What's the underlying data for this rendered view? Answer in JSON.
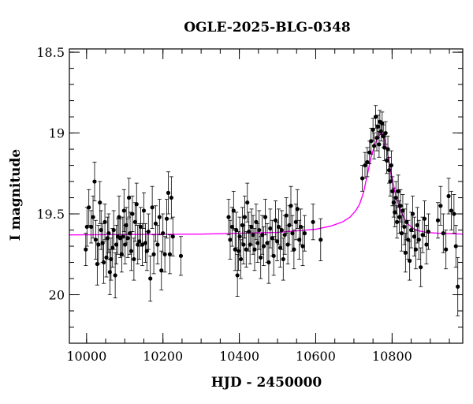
{
  "chart_data": {
    "type": "scatter",
    "title": "OGLE-2025-BLG-0348",
    "xlabel": "HJD - 2450000",
    "ylabel": "I magnitude",
    "xlim": [
      9955,
      10985
    ],
    "ylim": [
      20.3,
      18.48
    ],
    "y_inverted": true,
    "xticks": [
      10000,
      10200,
      10400,
      10600,
      10800
    ],
    "yticks": [
      {
        "value": 18.5,
        "label": "18.5"
      },
      {
        "value": 19.0,
        "label": "19"
      },
      {
        "value": 19.5,
        "label": "19.5"
      },
      {
        "value": 20.0,
        "label": "20"
      }
    ],
    "x_minor_step": 50,
    "y_minor_step": 0.1,
    "grid": false,
    "series": [
      {
        "kind": "points_with_error_bars",
        "color": "#000000",
        "points": [
          {
            "x": 9998,
            "y": 19.72,
            "err": 0.1
          },
          {
            "x": 10001,
            "y": 19.58,
            "err": 0.12
          },
          {
            "x": 10006,
            "y": 19.46,
            "err": 0.11
          },
          {
            "x": 10012,
            "y": 19.58,
            "err": 0.1
          },
          {
            "x": 10017,
            "y": 19.52,
            "err": 0.13
          },
          {
            "x": 10021,
            "y": 19.3,
            "err": 0.12
          },
          {
            "x": 10024,
            "y": 19.66,
            "err": 0.12
          },
          {
            "x": 10028,
            "y": 19.81,
            "err": 0.13
          },
          {
            "x": 10031,
            "y": 19.69,
            "err": 0.12
          },
          {
            "x": 10035,
            "y": 19.43,
            "err": 0.13
          },
          {
            "x": 10038,
            "y": 19.6,
            "err": 0.12
          },
          {
            "x": 10042,
            "y": 19.68,
            "err": 0.12
          },
          {
            "x": 10045,
            "y": 19.8,
            "err": 0.13
          },
          {
            "x": 10048,
            "y": 19.55,
            "err": 0.11
          },
          {
            "x": 10052,
            "y": 19.77,
            "err": 0.12
          },
          {
            "x": 10055,
            "y": 19.65,
            "err": 0.13
          },
          {
            "x": 10058,
            "y": 19.62,
            "err": 0.12
          },
          {
            "x": 10061,
            "y": 19.86,
            "err": 0.14
          },
          {
            "x": 10064,
            "y": 19.78,
            "err": 0.13
          },
          {
            "x": 10068,
            "y": 19.71,
            "err": 0.12
          },
          {
            "x": 10071,
            "y": 19.6,
            "err": 0.12
          },
          {
            "x": 10075,
            "y": 19.88,
            "err": 0.14
          },
          {
            "x": 10078,
            "y": 19.69,
            "err": 0.12
          },
          {
            "x": 10082,
            "y": 19.64,
            "err": 0.11
          },
          {
            "x": 10085,
            "y": 19.52,
            "err": 0.13
          },
          {
            "x": 10088,
            "y": 19.65,
            "err": 0.12
          },
          {
            "x": 10092,
            "y": 19.75,
            "err": 0.11
          },
          {
            "x": 10095,
            "y": 19.64,
            "err": 0.12
          },
          {
            "x": 10098,
            "y": 19.48,
            "err": 0.13
          },
          {
            "x": 10101,
            "y": 19.69,
            "err": 0.12
          },
          {
            "x": 10104,
            "y": 19.57,
            "err": 0.11
          },
          {
            "x": 10108,
            "y": 19.65,
            "err": 0.12
          },
          {
            "x": 10111,
            "y": 19.4,
            "err": 0.12
          },
          {
            "x": 10114,
            "y": 19.62,
            "err": 0.13
          },
          {
            "x": 10117,
            "y": 19.73,
            "err": 0.12
          },
          {
            "x": 10120,
            "y": 19.5,
            "err": 0.11
          },
          {
            "x": 10124,
            "y": 19.78,
            "err": 0.13
          },
          {
            "x": 10127,
            "y": 19.55,
            "err": 0.12
          },
          {
            "x": 10131,
            "y": 19.44,
            "err": 0.13
          },
          {
            "x": 10134,
            "y": 19.69,
            "err": 0.12
          },
          {
            "x": 10138,
            "y": 19.67,
            "err": 0.11
          },
          {
            "x": 10142,
            "y": 19.58,
            "err": 0.12
          },
          {
            "x": 10146,
            "y": 19.69,
            "err": 0.13
          },
          {
            "x": 10150,
            "y": 19.48,
            "err": 0.11
          },
          {
            "x": 10154,
            "y": 19.68,
            "err": 0.12
          },
          {
            "x": 10158,
            "y": 19.73,
            "err": 0.12
          },
          {
            "x": 10162,
            "y": 19.61,
            "err": 0.11
          },
          {
            "x": 10167,
            "y": 19.9,
            "err": 0.14
          },
          {
            "x": 10172,
            "y": 19.46,
            "err": 0.13
          },
          {
            "x": 10176,
            "y": 19.75,
            "err": 0.12
          },
          {
            "x": 10181,
            "y": 19.56,
            "err": 0.11
          },
          {
            "x": 10186,
            "y": 19.69,
            "err": 0.12
          },
          {
            "x": 10191,
            "y": 19.52,
            "err": 0.11
          },
          {
            "x": 10196,
            "y": 19.85,
            "err": 0.12
          },
          {
            "x": 10200,
            "y": 19.62,
            "err": 0.12
          },
          {
            "x": 10205,
            "y": 19.75,
            "err": 0.11
          },
          {
            "x": 10210,
            "y": 19.53,
            "err": 0.12
          },
          {
            "x": 10214,
            "y": 19.37,
            "err": 0.13
          },
          {
            "x": 10218,
            "y": 19.75,
            "err": 0.12
          },
          {
            "x": 10222,
            "y": 19.4,
            "err": 0.13
          },
          {
            "x": 10226,
            "y": 19.64,
            "err": 0.12
          },
          {
            "x": 10247,
            "y": 19.76,
            "err": 0.12
          },
          {
            "x": 10372,
            "y": 19.52,
            "err": 0.11
          },
          {
            "x": 10376,
            "y": 19.66,
            "err": 0.12
          },
          {
            "x": 10381,
            "y": 19.58,
            "err": 0.12
          },
          {
            "x": 10385,
            "y": 19.48,
            "err": 0.12
          },
          {
            "x": 10389,
            "y": 19.72,
            "err": 0.13
          },
          {
            "x": 10392,
            "y": 19.6,
            "err": 0.11
          },
          {
            "x": 10395,
            "y": 19.88,
            "err": 0.13
          },
          {
            "x": 10398,
            "y": 19.73,
            "err": 0.12
          },
          {
            "x": 10401,
            "y": 19.64,
            "err": 0.12
          },
          {
            "x": 10404,
            "y": 19.78,
            "err": 0.12
          },
          {
            "x": 10408,
            "y": 19.57,
            "err": 0.11
          },
          {
            "x": 10411,
            "y": 19.69,
            "err": 0.12
          },
          {
            "x": 10414,
            "y": 19.52,
            "err": 0.13
          },
          {
            "x": 10418,
            "y": 19.72,
            "err": 0.11
          },
          {
            "x": 10421,
            "y": 19.43,
            "err": 0.12
          },
          {
            "x": 10425,
            "y": 19.61,
            "err": 0.12
          },
          {
            "x": 10428,
            "y": 19.69,
            "err": 0.12
          },
          {
            "x": 10432,
            "y": 19.58,
            "err": 0.11
          },
          {
            "x": 10436,
            "y": 19.63,
            "err": 0.12
          },
          {
            "x": 10440,
            "y": 19.72,
            "err": 0.13
          },
          {
            "x": 10444,
            "y": 19.55,
            "err": 0.11
          },
          {
            "x": 10448,
            "y": 19.68,
            "err": 0.12
          },
          {
            "x": 10452,
            "y": 19.6,
            "err": 0.12
          },
          {
            "x": 10456,
            "y": 19.77,
            "err": 0.13
          },
          {
            "x": 10460,
            "y": 19.63,
            "err": 0.12
          },
          {
            "x": 10464,
            "y": 19.7,
            "err": 0.12
          },
          {
            "x": 10468,
            "y": 19.52,
            "err": 0.11
          },
          {
            "x": 10473,
            "y": 19.68,
            "err": 0.12
          },
          {
            "x": 10477,
            "y": 19.8,
            "err": 0.13
          },
          {
            "x": 10481,
            "y": 19.59,
            "err": 0.12
          },
          {
            "x": 10486,
            "y": 19.65,
            "err": 0.11
          },
          {
            "x": 10490,
            "y": 19.76,
            "err": 0.12
          },
          {
            "x": 10495,
            "y": 19.54,
            "err": 0.12
          },
          {
            "x": 10499,
            "y": 19.67,
            "err": 0.12
          },
          {
            "x": 10503,
            "y": 19.58,
            "err": 0.11
          },
          {
            "x": 10507,
            "y": 19.71,
            "err": 0.12
          },
          {
            "x": 10511,
            "y": 19.6,
            "err": 0.12
          },
          {
            "x": 10515,
            "y": 19.78,
            "err": 0.13
          },
          {
            "x": 10519,
            "y": 19.63,
            "err": 0.12
          },
          {
            "x": 10523,
            "y": 19.51,
            "err": 0.11
          },
          {
            "x": 10527,
            "y": 19.69,
            "err": 0.12
          },
          {
            "x": 10531,
            "y": 19.57,
            "err": 0.12
          },
          {
            "x": 10535,
            "y": 19.45,
            "err": 0.12
          },
          {
            "x": 10539,
            "y": 19.62,
            "err": 0.11
          },
          {
            "x": 10543,
            "y": 19.72,
            "err": 0.12
          },
          {
            "x": 10548,
            "y": 19.55,
            "err": 0.11
          },
          {
            "x": 10552,
            "y": 19.47,
            "err": 0.12
          },
          {
            "x": 10557,
            "y": 19.66,
            "err": 0.12
          },
          {
            "x": 10561,
            "y": 19.58,
            "err": 0.11
          },
          {
            "x": 10566,
            "y": 19.7,
            "err": 0.12
          },
          {
            "x": 10571,
            "y": 19.62,
            "err": 0.11
          },
          {
            "x": 10593,
            "y": 19.55,
            "err": 0.11
          },
          {
            "x": 10613,
            "y": 19.66,
            "err": 0.13
          },
          {
            "x": 10722,
            "y": 19.28,
            "err": 0.08
          },
          {
            "x": 10729,
            "y": 19.2,
            "err": 0.08
          },
          {
            "x": 10735,
            "y": 19.18,
            "err": 0.09
          },
          {
            "x": 10741,
            "y": 19.12,
            "err": 0.07
          },
          {
            "x": 10745,
            "y": 19.05,
            "err": 0.08
          },
          {
            "x": 10750,
            "y": 18.98,
            "err": 0.07
          },
          {
            "x": 10753,
            "y": 19.08,
            "err": 0.08
          },
          {
            "x": 10757,
            "y": 18.9,
            "err": 0.07
          },
          {
            "x": 10760,
            "y": 19.03,
            "err": 0.08
          },
          {
            "x": 10763,
            "y": 18.96,
            "err": 0.07
          },
          {
            "x": 10766,
            "y": 19.07,
            "err": 0.08
          },
          {
            "x": 10768,
            "y": 18.93,
            "err": 0.07
          },
          {
            "x": 10771,
            "y": 18.99,
            "err": 0.06
          },
          {
            "x": 10774,
            "y": 18.94,
            "err": 0.07
          },
          {
            "x": 10777,
            "y": 19.02,
            "err": 0.07
          },
          {
            "x": 10780,
            "y": 19.09,
            "err": 0.08
          },
          {
            "x": 10783,
            "y": 19.0,
            "err": 0.07
          },
          {
            "x": 10786,
            "y": 19.17,
            "err": 0.08
          },
          {
            "x": 10789,
            "y": 19.1,
            "err": 0.08
          },
          {
            "x": 10792,
            "y": 19.23,
            "err": 0.08
          },
          {
            "x": 10795,
            "y": 19.3,
            "err": 0.09
          },
          {
            "x": 10798,
            "y": 19.2,
            "err": 0.09
          },
          {
            "x": 10801,
            "y": 19.36,
            "err": 0.09
          },
          {
            "x": 10804,
            "y": 19.43,
            "err": 0.09
          },
          {
            "x": 10807,
            "y": 19.49,
            "err": 0.09
          },
          {
            "x": 10810,
            "y": 19.4,
            "err": 0.1
          },
          {
            "x": 10813,
            "y": 19.55,
            "err": 0.1
          },
          {
            "x": 10816,
            "y": 19.36,
            "err": 0.1
          },
          {
            "x": 10819,
            "y": 19.52,
            "err": 0.1
          },
          {
            "x": 10822,
            "y": 19.45,
            "err": 0.1
          },
          {
            "x": 10825,
            "y": 19.62,
            "err": 0.11
          },
          {
            "x": 10828,
            "y": 19.48,
            "err": 0.1
          },
          {
            "x": 10832,
            "y": 19.58,
            "err": 0.11
          },
          {
            "x": 10835,
            "y": 19.74,
            "err": 0.12
          },
          {
            "x": 10838,
            "y": 19.55,
            "err": 0.11
          },
          {
            "x": 10842,
            "y": 19.66,
            "err": 0.12
          },
          {
            "x": 10846,
            "y": 19.79,
            "err": 0.12
          },
          {
            "x": 10850,
            "y": 19.6,
            "err": 0.11
          },
          {
            "x": 10854,
            "y": 19.5,
            "err": 0.11
          },
          {
            "x": 10858,
            "y": 19.64,
            "err": 0.12
          },
          {
            "x": 10862,
            "y": 19.72,
            "err": 0.12
          },
          {
            "x": 10866,
            "y": 19.57,
            "err": 0.11
          },
          {
            "x": 10870,
            "y": 19.66,
            "err": 0.12
          },
          {
            "x": 10875,
            "y": 19.83,
            "err": 0.12
          },
          {
            "x": 10880,
            "y": 19.63,
            "err": 0.11
          },
          {
            "x": 10885,
            "y": 19.53,
            "err": 0.11
          },
          {
            "x": 10890,
            "y": 19.69,
            "err": 0.12
          },
          {
            "x": 10895,
            "y": 19.61,
            "err": 0.11
          },
          {
            "x": 10920,
            "y": 19.54,
            "err": 0.11
          },
          {
            "x": 10927,
            "y": 19.45,
            "err": 0.12
          },
          {
            "x": 10934,
            "y": 19.62,
            "err": 0.12
          },
          {
            "x": 10941,
            "y": 19.72,
            "err": 0.12
          },
          {
            "x": 10948,
            "y": 19.39,
            "err": 0.11
          },
          {
            "x": 10955,
            "y": 19.48,
            "err": 0.12
          },
          {
            "x": 10962,
            "y": 19.5,
            "err": 0.12
          },
          {
            "x": 10967,
            "y": 19.7,
            "err": 0.13
          },
          {
            "x": 10972,
            "y": 19.95,
            "err": 0.18
          }
        ]
      },
      {
        "kind": "model_curve",
        "color": "#ff00ff",
        "x": [
          9955,
          10300,
          10500,
          10600,
          10640,
          10670,
          10690,
          10705,
          10715,
          10725,
          10735,
          10745,
          10755,
          10762,
          10768,
          10772,
          10776,
          10780,
          10786,
          10792,
          10800,
          10810,
          10820,
          10830,
          10840,
          10855,
          10870,
          10890,
          10920,
          10985
        ],
        "y": [
          19.63,
          19.625,
          19.615,
          19.595,
          19.575,
          19.55,
          19.52,
          19.48,
          19.44,
          19.37,
          19.26,
          19.15,
          19.07,
          19.03,
          19.01,
          19.0,
          19.01,
          19.04,
          19.1,
          19.18,
          19.28,
          19.39,
          19.47,
          19.52,
          19.56,
          19.59,
          19.605,
          19.615,
          19.62,
          19.625
        ]
      }
    ]
  }
}
